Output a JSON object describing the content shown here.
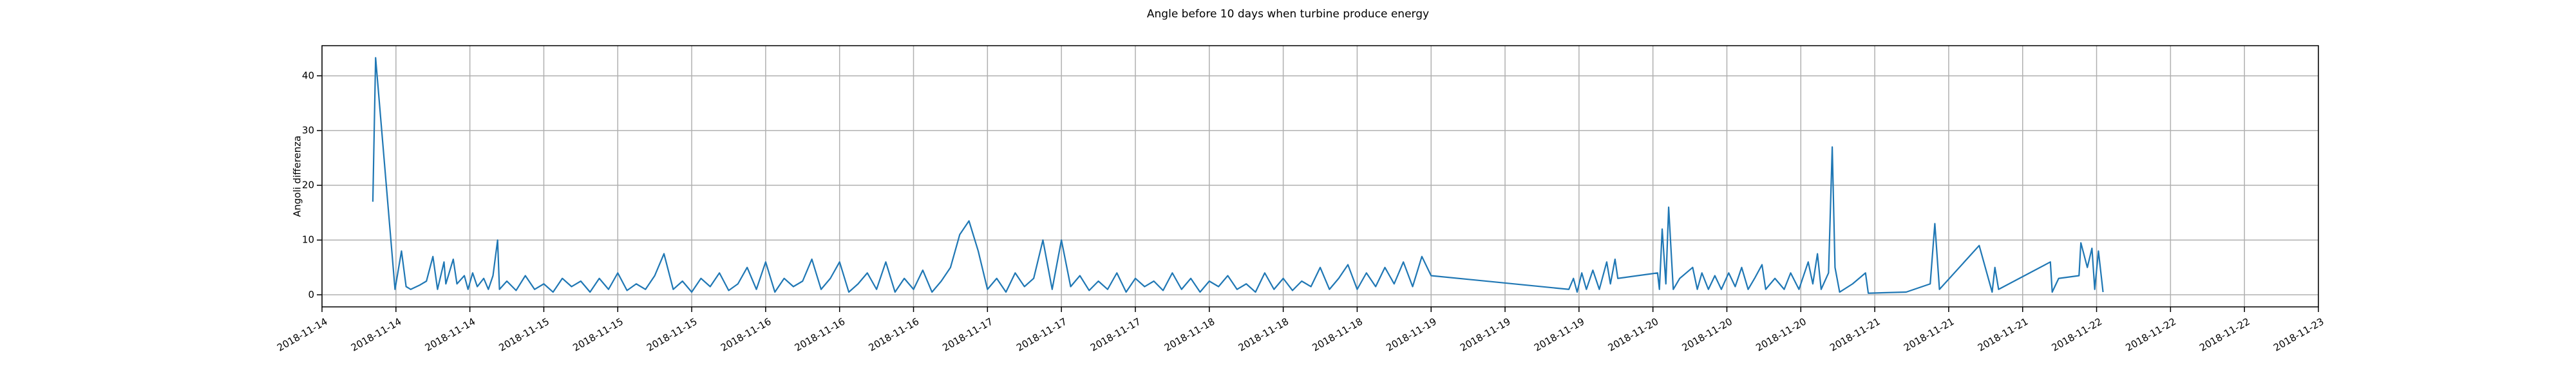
{
  "chart_data": {
    "type": "line",
    "title": "Angle before 10 days when turbine produce energy",
    "y_label": "Angoli differenza",
    "x": [
      5.5,
      5.8,
      7.9,
      8.6,
      9.1,
      9.6,
      10.6,
      11.3,
      12,
      12.5,
      13.2,
      13.4,
      14.2,
      14.6,
      15.4,
      15.8,
      16.3,
      16.8,
      17.5,
      18,
      18.5,
      19,
      19.2,
      20,
      21,
      22,
      23,
      24,
      25,
      26,
      27,
      28,
      29,
      30,
      31,
      32,
      33,
      34,
      35,
      36,
      37,
      38,
      39,
      40,
      41,
      42,
      43,
      44,
      45,
      46,
      47,
      48,
      49,
      50,
      51,
      52,
      53,
      54,
      55,
      56,
      57,
      58,
      59,
      60,
      61,
      62,
      63,
      64,
      65,
      66,
      67,
      68,
      69,
      70,
      71,
      72,
      73,
      74,
      75,
      76,
      77,
      78,
      79,
      80,
      81,
      82,
      83,
      84,
      85,
      86,
      87,
      88,
      89,
      90,
      91,
      92,
      93,
      94,
      95,
      96,
      97,
      98,
      99,
      100,
      101,
      102,
      103,
      104,
      105,
      106,
      107,
      108,
      109,
      110,
      111,
      112,
      113,
      114,
      115,
      116,
      117,
      118,
      119,
      120,
      134.9,
      135.4,
      135.8,
      136.3,
      136.8,
      137.5,
      138.2,
      139,
      139.4,
      139.9,
      140.2,
      144.5,
      144.7,
      145,
      145.4,
      145.7,
      146.2,
      146.9,
      148.3,
      148.8,
      149.3,
      150,
      150.7,
      151.4,
      152.2,
      152.9,
      153.6,
      154.3,
      155,
      155.8,
      156.2,
      157.2,
      158.2,
      158.9,
      159.8,
      160.8,
      161.3,
      161.8,
      162.2,
      163,
      163.4,
      163.7,
      164.2,
      165.6,
      167,
      167.3,
      171.4,
      174,
      174.5,
      175,
      179.3,
      180.7,
      181,
      181.4,
      187,
      187.2,
      187.9,
      190.1,
      190.3,
      191,
      191.5,
      191.8,
      192.2,
      192.7
    ],
    "series": [
      {
        "color": "#1f77b4",
        "values": [
          17,
          43.3,
          1,
          8,
          1.5,
          1,
          1.8,
          2.5,
          7,
          1,
          6,
          2,
          6.5,
          2,
          3.5,
          1,
          4,
          1.5,
          3,
          1,
          3.5,
          10,
          1,
          2.5,
          0.8,
          3.5,
          1,
          2,
          0.5,
          3,
          1.5,
          2.5,
          0.5,
          3,
          1,
          4,
          0.8,
          2,
          1,
          3.5,
          7.5,
          1,
          2.5,
          0.5,
          3,
          1.5,
          4,
          0.8,
          2,
          5,
          1,
          6,
          0.5,
          3,
          1.5,
          2.5,
          6.5,
          1,
          3,
          6,
          0.5,
          2,
          4,
          1,
          6,
          0.5,
          3,
          1,
          4.5,
          0.5,
          2.5,
          5,
          11,
          13.5,
          8,
          1,
          3,
          0.5,
          4,
          1.5,
          3,
          10,
          1,
          10,
          1.5,
          3.5,
          0.8,
          2.5,
          1,
          4,
          0.5,
          3,
          1.5,
          2.5,
          0.8,
          4,
          1,
          3,
          0.5,
          2.5,
          1.5,
          3.5,
          1,
          2,
          0.5,
          4,
          1,
          3,
          0.8,
          2.5,
          1.5,
          5,
          1,
          3,
          5.5,
          1,
          4,
          1.5,
          5,
          2,
          6,
          1.5,
          7,
          3.5,
          1,
          3,
          0.5,
          4,
          1,
          4.5,
          1,
          6,
          2,
          6.5,
          3,
          4,
          1,
          12,
          2,
          16,
          1,
          3,
          5,
          1,
          4,
          1,
          3.5,
          1,
          4,
          1.5,
          5,
          1,
          3,
          5.5,
          1,
          3,
          1,
          4,
          1,
          6,
          2,
          7.5,
          1,
          4,
          27,
          5,
          0.5,
          2,
          4,
          0.3,
          0.5,
          2,
          13,
          1,
          9,
          0.5,
          5,
          1,
          6,
          0.5,
          3,
          3.5,
          9.5,
          5,
          8.5,
          1,
          8,
          0.5
        ]
      }
    ],
    "xlim": [
      0,
      216
    ],
    "xticks": [
      {
        "value": 0,
        "label": "2018-11-14"
      },
      {
        "value": 8,
        "label": "2018-11-14"
      },
      {
        "value": 16,
        "label": "2018-11-14"
      },
      {
        "value": 24,
        "label": "2018-11-15"
      },
      {
        "value": 32,
        "label": "2018-11-15"
      },
      {
        "value": 40,
        "label": "2018-11-15"
      },
      {
        "value": 48,
        "label": "2018-11-16"
      },
      {
        "value": 56,
        "label": "2018-11-16"
      },
      {
        "value": 64,
        "label": "2018-11-16"
      },
      {
        "value": 72,
        "label": "2018-11-17"
      },
      {
        "value": 80,
        "label": "2018-11-17"
      },
      {
        "value": 88,
        "label": "2018-11-17"
      },
      {
        "value": 96,
        "label": "2018-11-18"
      },
      {
        "value": 104,
        "label": "2018-11-18"
      },
      {
        "value": 112,
        "label": "2018-11-18"
      },
      {
        "value": 120,
        "label": "2018-11-19"
      },
      {
        "value": 128,
        "label": "2018-11-19"
      },
      {
        "value": 136,
        "label": "2018-11-19"
      },
      {
        "value": 144,
        "label": "2018-11-20"
      },
      {
        "value": 152,
        "label": "2018-11-20"
      },
      {
        "value": 160,
        "label": "2018-11-20"
      },
      {
        "value": 168,
        "label": "2018-11-21"
      },
      {
        "value": 176,
        "label": "2018-11-21"
      },
      {
        "value": 184,
        "label": "2018-11-21"
      },
      {
        "value": 192,
        "label": "2018-11-22"
      },
      {
        "value": 200,
        "label": "2018-11-22"
      },
      {
        "value": 208,
        "label": "2018-11-22"
      },
      {
        "value": 216,
        "label": "2018-11-23"
      }
    ],
    "ylim": [
      -2.2,
      45.5
    ],
    "yticks": [
      0,
      10,
      20,
      30,
      40
    ],
    "grid": true
  }
}
